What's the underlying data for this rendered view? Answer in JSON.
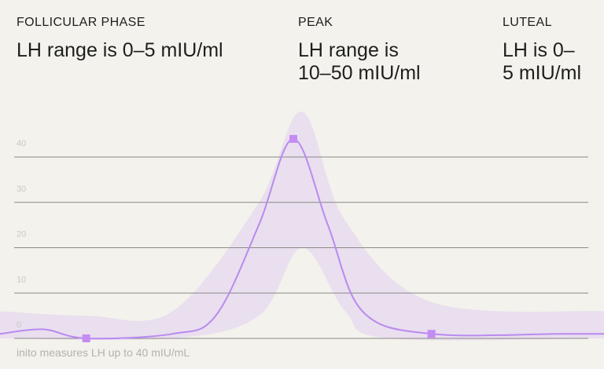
{
  "phases": [
    {
      "label": "FOLLICULAR PHASE",
      "description": "LH range is 0–5 mIU/ml"
    },
    {
      "label": "PEAK",
      "description": "LH range is\n10–50 mIU/ml"
    },
    {
      "label": "LUTEAL",
      "description": "LH is 0–\n5 mIU/ml"
    }
  ],
  "footnote": "inito measures LH up to 40 mIU/mL",
  "colors": {
    "background": "#f3f2ec",
    "line": "#b98af0",
    "band": "#e6dcef",
    "marker": "#c58cf3",
    "grid": "#8a8a85",
    "tick": "#c9c9c3"
  },
  "chart_data": {
    "type": "line",
    "ylim": [
      0,
      40
    ],
    "yticks": [
      0,
      10,
      20,
      30,
      40
    ],
    "grid": true,
    "series": [
      {
        "points": [
          [
            0,
            1
          ],
          [
            0.5,
            2
          ],
          [
            1,
            0
          ],
          [
            2,
            1
          ],
          [
            2.5,
            5
          ],
          [
            3,
            25
          ],
          [
            3.4,
            44
          ],
          [
            3.8,
            25
          ],
          [
            4.2,
            6
          ],
          [
            5,
            1
          ],
          [
            6.5,
            1
          ],
          [
            7,
            1
          ]
        ],
        "markers": [
          [
            1,
            0
          ],
          [
            3.4,
            44
          ],
          [
            5,
            1
          ]
        ]
      }
    ],
    "band": {
      "upper": [
        [
          0,
          6
        ],
        [
          1,
          5
        ],
        [
          2,
          6
        ],
        [
          3,
          30
        ],
        [
          3.5,
          50
        ],
        [
          4,
          26
        ],
        [
          5,
          8
        ],
        [
          7,
          6
        ]
      ],
      "lower": [
        [
          0,
          0
        ],
        [
          2,
          0
        ],
        [
          3,
          5
        ],
        [
          3.5,
          20
        ],
        [
          4,
          6
        ],
        [
          4.5,
          0
        ],
        [
          7,
          0
        ]
      ]
    }
  }
}
